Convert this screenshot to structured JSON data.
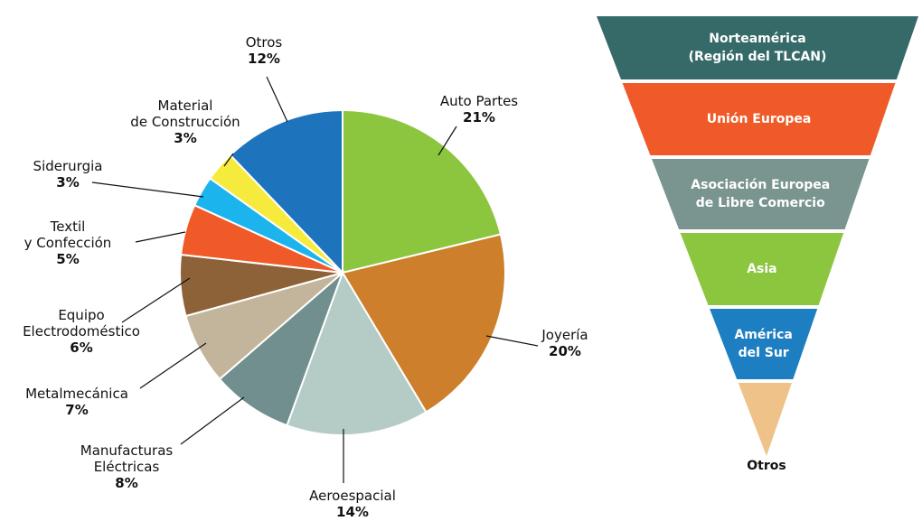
{
  "chart_data": [
    {
      "type": "pie",
      "categories": [
        "Auto Partes",
        "Joyería",
        "Aeroespacial",
        "Manufacturas\nEléctricas",
        "Metalmecánica",
        "Equipo\nElectrodoméstico",
        "Textil\ny Confección",
        "Siderurgia",
        "Material\nde Construcción",
        "Otros"
      ],
      "values": [
        21,
        20,
        14,
        8,
        7,
        6,
        5,
        3,
        3,
        12
      ],
      "value_labels": [
        "21%",
        "20%",
        "14%",
        "8%",
        "7%",
        "6%",
        "5%",
        "3%",
        "3%",
        "12%"
      ],
      "colors": [
        "#8cc63f",
        "#cd7f2b",
        "#b4cbc6",
        "#718f8f",
        "#c3b59c",
        "#8d6239",
        "#f05a28",
        "#1cb4ec",
        "#f6eb3c",
        "#1e74bc"
      ]
    },
    {
      "type": "funnel",
      "categories": [
        "Norteamérica\n(Región del TLCAN)",
        "Unión Europea",
        "Asociación Europea\nde Libre Comercio",
        "Asia",
        "América\ndel Sur",
        "Otros"
      ],
      "colors": [
        "#356a68",
        "#f05a28",
        "#7a9590",
        "#8cc63f",
        "#1e7ec2",
        "#efc28a"
      ]
    }
  ]
}
